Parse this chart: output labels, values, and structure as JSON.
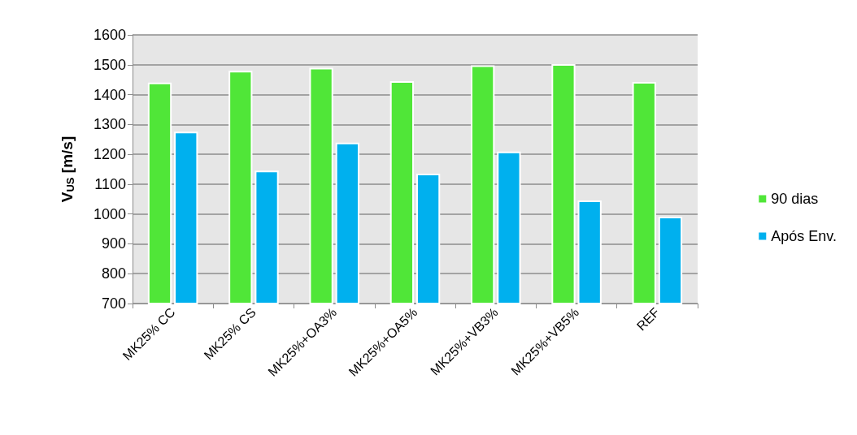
{
  "chart_data": {
    "type": "bar",
    "ylabel": "V$_{US}$ [m/s]",
    "categories": [
      "MK25% CC",
      "MK25% CS",
      "MK25%+OA3%",
      "MK25%+OA5%",
      "MK25%+VB3%",
      "MK25%+VB5%",
      "REF"
    ],
    "series": [
      {
        "name": "90 dias",
        "color": "#50e638",
        "values": [
          1440,
          1480,
          1490,
          1445,
          1498,
          1502,
          1442
        ]
      },
      {
        "name": "Após Env.",
        "color": "#00b0ee",
        "values": [
          1276,
          1145,
          1239,
          1135,
          1209,
          1045,
          991
        ]
      }
    ],
    "ylim": [
      700,
      1600
    ],
    "yticks": [
      700,
      800,
      900,
      1000,
      1100,
      1200,
      1300,
      1400,
      1500,
      1600
    ],
    "grid": "y",
    "legend": "right"
  }
}
